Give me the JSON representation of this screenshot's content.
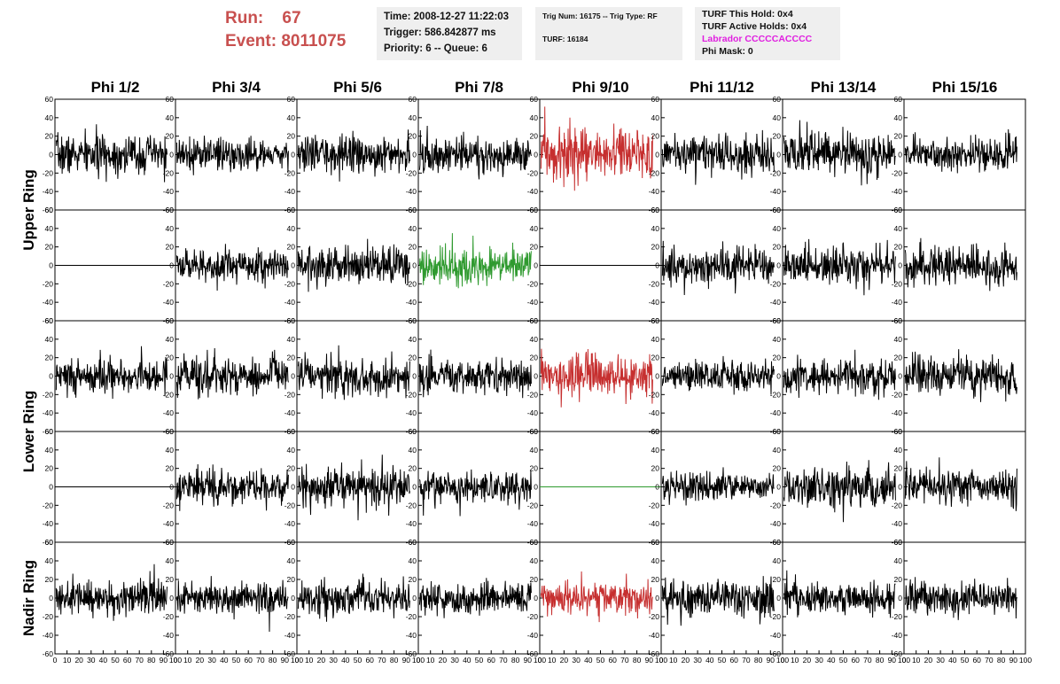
{
  "header": {
    "run_label": "Run:",
    "run_value": "67",
    "event_label": "Event:",
    "event_value": "8011075",
    "time": "Time: 2008-12-27 11:22:03",
    "trigger": "Trigger: 586.842877 ms",
    "priority": "Priority: 6 -- Queue: 6",
    "trig_num": "Trig Num: 16175 -- Trig Type: RF",
    "turf": "TURF: 16184",
    "turf_this_hold": "TURF This Hold: 0x4",
    "turf_active_holds": "TURF Active Holds: 0x4",
    "labrador": "Labrador CCCCCACCCC",
    "phi_mask": "Phi Mask: 0"
  },
  "colors": {
    "run_text": "#c8504f",
    "trace_default": "#000000",
    "trace_red": "#c62f2f",
    "trace_green": "#2f9a2f",
    "labrador_text": "#e020e0",
    "info_box_bg": "#efefef"
  },
  "chart_data": {
    "type": "line",
    "columns": [
      "Phi 1/2",
      "Phi 3/4",
      "Phi 5/6",
      "Phi 7/8",
      "Phi 9/10",
      "Phi 11/12",
      "Phi 13/14",
      "Phi 15/16"
    ],
    "rows": [
      "Upper Ring",
      "Upper Ring",
      "Lower Ring",
      "Lower Ring",
      "Nadir Ring"
    ],
    "row_labels": [
      {
        "label": "Upper Ring",
        "spans_rows": [
          0,
          1
        ]
      },
      {
        "label": "Lower Ring",
        "spans_rows": [
          2,
          3
        ]
      },
      {
        "label": "Nadir Ring",
        "spans_rows": [
          4
        ]
      }
    ],
    "ylim": [
      -60,
      60
    ],
    "yticks": [
      -60,
      -40,
      -20,
      0,
      20,
      40,
      60
    ],
    "xlim": [
      0,
      100
    ],
    "xticks": [
      0,
      10,
      20,
      30,
      40,
      50,
      60,
      70,
      80,
      90,
      100
    ],
    "grid": true,
    "panels": [
      [
        {
          "trace": "black",
          "amp": 17
        },
        {
          "trace": "black",
          "amp": 15
        },
        {
          "trace": "black",
          "amp": 16
        },
        {
          "trace": "black",
          "amp": 17
        },
        {
          "trace": "red",
          "amp": 22
        },
        {
          "trace": "black",
          "amp": 16
        },
        {
          "trace": "black",
          "amp": 19
        },
        {
          "trace": "black",
          "amp": 15
        }
      ],
      [
        {
          "trace": "flat",
          "amp": 0
        },
        {
          "trace": "black",
          "amp": 14
        },
        {
          "trace": "black",
          "amp": 17
        },
        {
          "trace": "green",
          "amp": 16
        },
        {
          "trace": "flat",
          "amp": 0
        },
        {
          "trace": "black",
          "amp": 15
        },
        {
          "trace": "black",
          "amp": 17
        },
        {
          "trace": "black",
          "amp": 18
        }
      ],
      [
        {
          "trace": "black",
          "amp": 16
        },
        {
          "trace": "black",
          "amp": 18
        },
        {
          "trace": "black",
          "amp": 17
        },
        {
          "trace": "black",
          "amp": 15
        },
        {
          "trace": "red",
          "amp": 20
        },
        {
          "trace": "black",
          "amp": 14
        },
        {
          "trace": "black",
          "amp": 16
        },
        {
          "trace": "black",
          "amp": 17
        }
      ],
      [
        {
          "trace": "flat",
          "amp": 0
        },
        {
          "trace": "black",
          "amp": 15
        },
        {
          "trace": "black",
          "amp": 18
        },
        {
          "trace": "black",
          "amp": 16
        },
        {
          "trace": "flat_green",
          "amp": 0
        },
        {
          "trace": "black",
          "amp": 13
        },
        {
          "trace": "black",
          "amp": 18
        },
        {
          "trace": "black",
          "amp": 16
        }
      ],
      [
        {
          "trace": "black",
          "amp": 16
        },
        {
          "trace": "black",
          "amp": 13
        },
        {
          "trace": "black",
          "amp": 14
        },
        {
          "trace": "black",
          "amp": 14
        },
        {
          "trace": "red",
          "amp": 14
        },
        {
          "trace": "black",
          "amp": 16
        },
        {
          "trace": "black",
          "amp": 15
        },
        {
          "trace": "black",
          "amp": 14
        }
      ]
    ]
  }
}
